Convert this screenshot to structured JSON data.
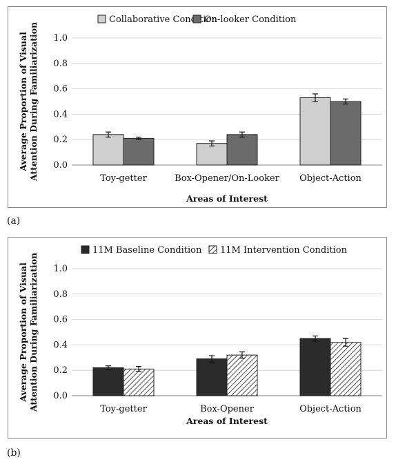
{
  "figure": {
    "label_a": "(a)",
    "label_b": "(b)"
  },
  "chart_data": [
    {
      "type": "bar",
      "categories": [
        "Toy-getter",
        "Box-Opener/On-Looker",
        "Object-Action"
      ],
      "series": [
        {
          "name": "Collaborative Condition",
          "values": [
            0.24,
            0.17,
            0.53
          ],
          "errors": [
            0.02,
            0.02,
            0.03
          ],
          "color": "#cfcfcf",
          "pattern": "solid"
        },
        {
          "name": "On-looker Condition",
          "values": [
            0.21,
            0.24,
            0.5
          ],
          "errors": [
            0.01,
            0.02,
            0.02
          ],
          "color": "#6b6b6b",
          "pattern": "solid"
        }
      ],
      "xlabel": "Areas of Interest",
      "ylabel": "Average Proportion of Visual Attention During Familiarization",
      "ylim": [
        0,
        1.0
      ],
      "yticks": [
        "0.0",
        "0.2",
        "0.4",
        "0.6",
        "0.8",
        "1.0"
      ],
      "grid": true,
      "legend_position": "top"
    },
    {
      "type": "bar",
      "categories": [
        "Toy-getter",
        "Box-Opener",
        "Object-Action"
      ],
      "series": [
        {
          "name": "11M Baseline Condition",
          "values": [
            0.22,
            0.29,
            0.45
          ],
          "errors": [
            0.015,
            0.025,
            0.02
          ],
          "color": "#2b2b2b",
          "pattern": "solid"
        },
        {
          "name": "11M Intervention Condition",
          "values": [
            0.21,
            0.32,
            0.42
          ],
          "errors": [
            0.02,
            0.025,
            0.03
          ],
          "color": "#ffffff",
          "pattern": "hatched"
        }
      ],
      "xlabel": "Areas of Interest",
      "ylabel": "Average Proportion of Visual Attention During Familiarization",
      "ylim": [
        0,
        1.0
      ],
      "yticks": [
        "0.0",
        "0.2",
        "0.4",
        "0.6",
        "0.8",
        "1.0"
      ],
      "grid": true,
      "legend_position": "top"
    }
  ]
}
